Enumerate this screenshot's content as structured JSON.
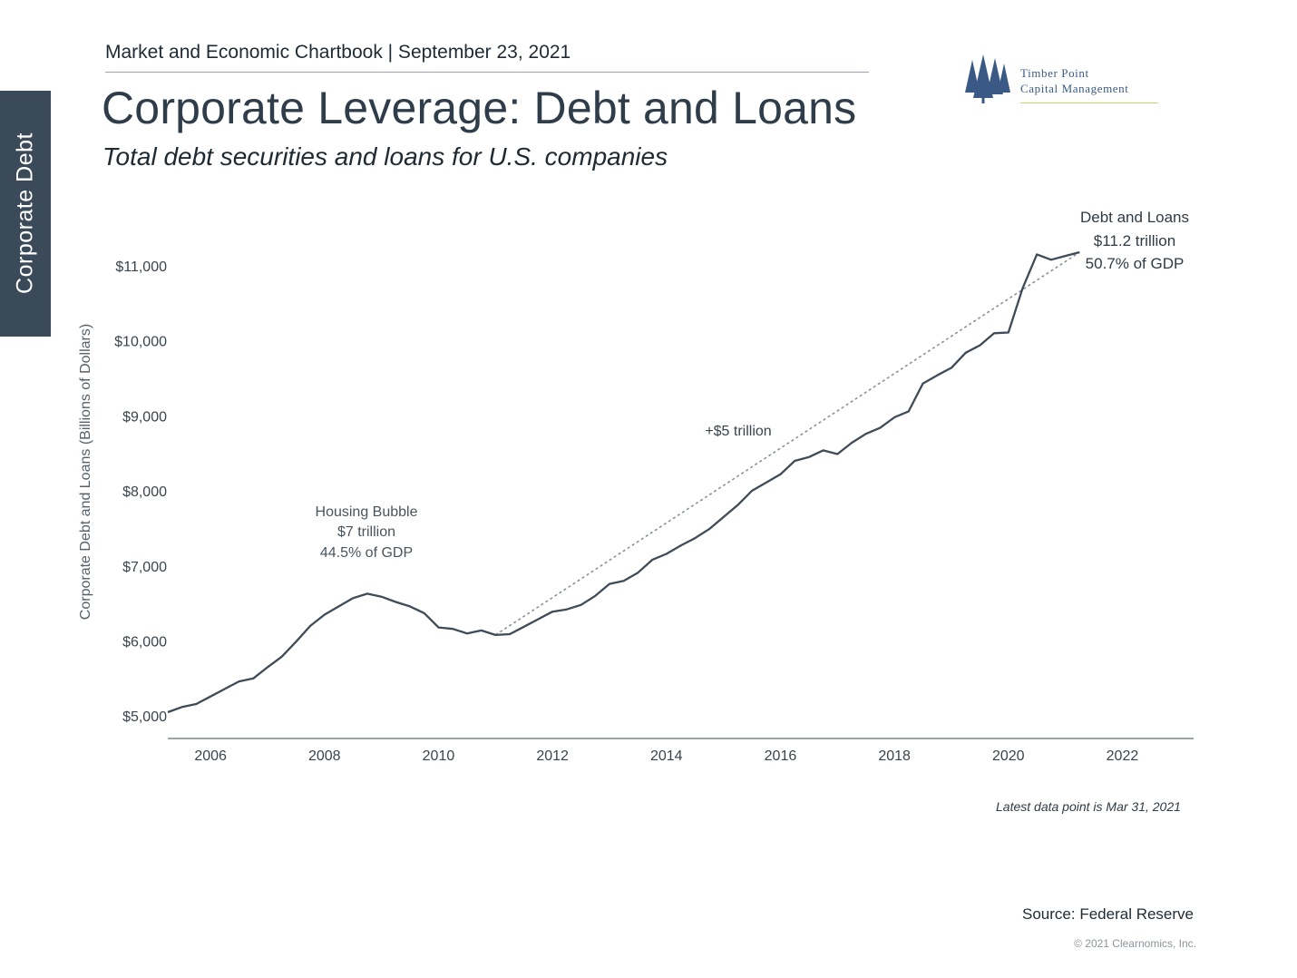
{
  "side_tab": {
    "label": "Corporate Debt"
  },
  "header": {
    "chartbook_line": "Market and Economic Chartbook | September 23, 2021",
    "title": "Corporate Leverage: Debt and Loans",
    "subtitle": "Total debt securities and loans for U.S. companies"
  },
  "logo": {
    "line1": "Timber Point",
    "line2": "Capital Management",
    "icon": "pine-trees-icon",
    "color": "#3a5a85"
  },
  "chart_data": {
    "type": "line",
    "title": "Corporate Leverage: Debt and Loans",
    "subtitle": "Total debt securities and loans for U.S. companies",
    "xlabel": "",
    "ylabel": "Corporate Debt and Loans (Billions of Dollars)",
    "xlim": [
      2005.25,
      2023.25
    ],
    "ylim": [
      4700,
      11700
    ],
    "x_ticks": [
      2006,
      2008,
      2010,
      2012,
      2014,
      2016,
      2018,
      2020,
      2022
    ],
    "y_ticks": [
      5000,
      6000,
      7000,
      8000,
      9000,
      10000,
      11000
    ],
    "y_tick_labels": [
      "$5,000",
      "$6,000",
      "$7,000",
      "$8,000",
      "$9,000",
      "$10,000",
      "$11,000"
    ],
    "grid": false,
    "line_color": "#3f4b57",
    "series": [
      {
        "name": "",
        "x": [
          2005.25,
          2005.5,
          2005.75,
          2006.0,
          2006.25,
          2006.5,
          2006.75,
          2007.0,
          2007.25,
          2007.5,
          2007.75,
          2008.0,
          2008.25,
          2008.5,
          2008.75,
          2009.0,
          2009.25,
          2009.5,
          2009.75,
          2010.0,
          2010.25,
          2010.5,
          2010.75,
          2011.0,
          2011.25,
          2011.5,
          2011.75,
          2012.0,
          2012.25,
          2012.5,
          2012.75,
          2013.0,
          2013.25,
          2013.5,
          2013.75,
          2014.0,
          2014.25,
          2014.5,
          2014.75,
          2015.0,
          2015.25,
          2015.5,
          2015.75,
          2016.0,
          2016.25,
          2016.5,
          2016.75,
          2017.0,
          2017.25,
          2017.5,
          2017.75,
          2018.0,
          2018.25,
          2018.5,
          2018.75,
          2019.0,
          2019.25,
          2019.5,
          2019.75,
          2020.0,
          2020.25,
          2020.5,
          2020.75,
          2021.0,
          2021.25
        ],
        "values": [
          5050,
          5120,
          5160,
          5260,
          5360,
          5460,
          5500,
          5650,
          5790,
          5990,
          6200,
          6350,
          6460,
          6570,
          6630,
          6590,
          6520,
          6460,
          6370,
          6180,
          6160,
          6100,
          6140,
          6080,
          6090,
          6190,
          6290,
          6390,
          6420,
          6480,
          6600,
          6760,
          6800,
          6910,
          7080,
          7160,
          7270,
          7370,
          7490,
          7650,
          7810,
          8000,
          8110,
          8220,
          8400,
          8450,
          8540,
          8490,
          8640,
          8760,
          8840,
          8980,
          9060,
          9430,
          9540,
          9640,
          9840,
          9940,
          10100,
          10110,
          10700,
          11150,
          11080,
          11130,
          11180
        ]
      }
    ],
    "trend_line": {
      "style": "dotted",
      "label": "+$5 trillion",
      "from": [
        2011.0,
        6080
      ],
      "to": [
        2021.25,
        11180
      ]
    },
    "annotations": [
      {
        "id": "housing",
        "lines": [
          "Housing Bubble",
          "$7 trillion",
          "44.5% of GDP"
        ]
      },
      {
        "id": "latest",
        "lines": [
          "Debt and Loans",
          "$11.2 trillion",
          "50.7% of GDP"
        ]
      }
    ]
  },
  "footer": {
    "latest_note": "Latest data point is Mar 31, 2021",
    "source": "Source: Federal Reserve",
    "copyright": "© 2021 Clearnomics, Inc."
  }
}
